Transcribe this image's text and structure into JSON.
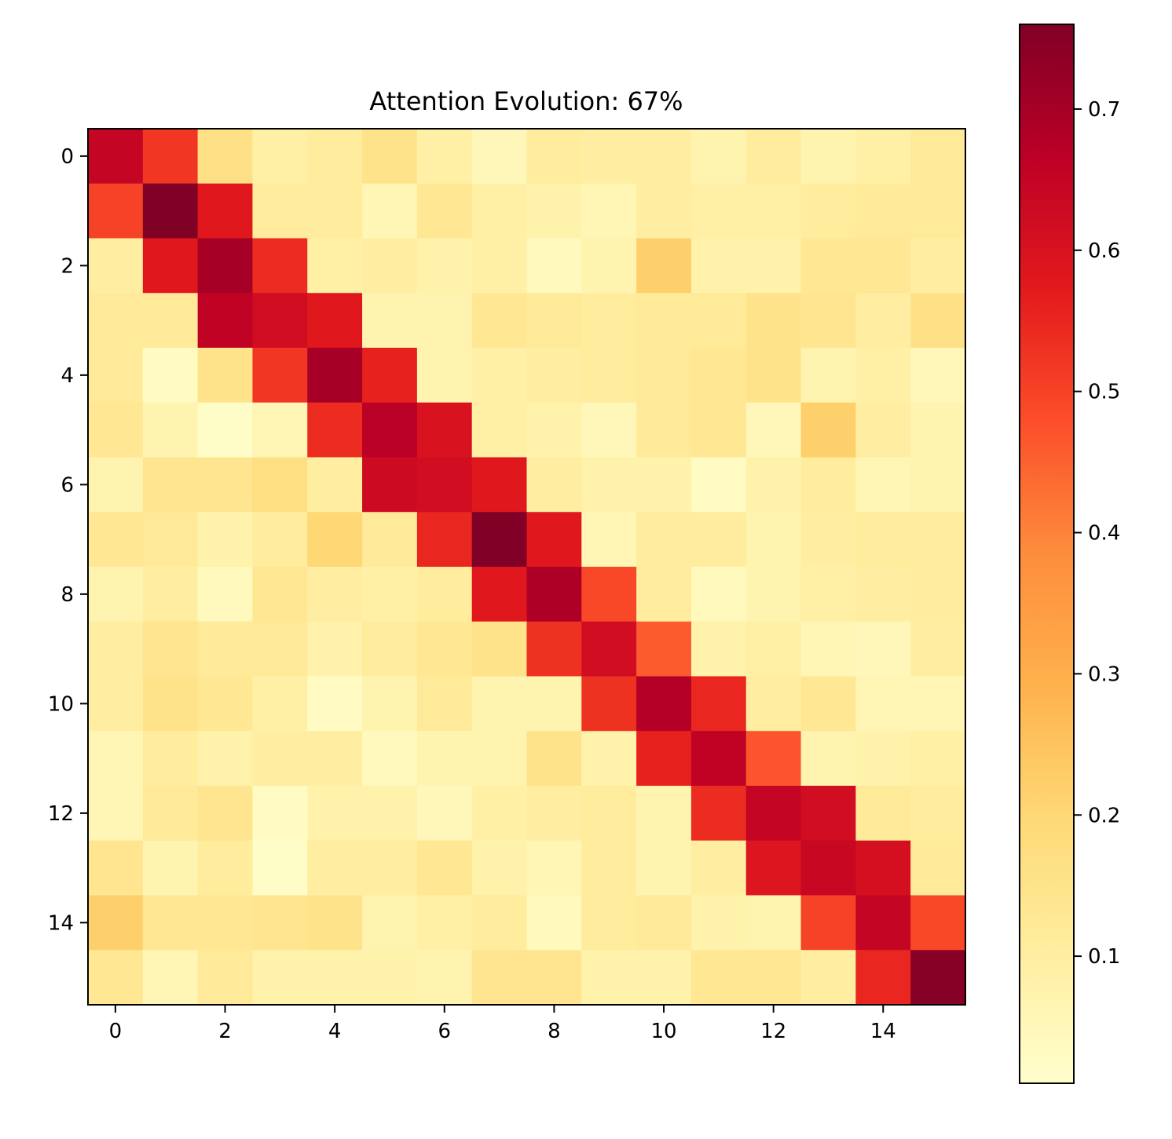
{
  "chart_data": {
    "type": "heatmap",
    "title": "Attention Evolution: 67%",
    "xlabel": "",
    "ylabel": "",
    "rows": 16,
    "cols": 16,
    "x_ticks": [
      0,
      2,
      4,
      6,
      8,
      10,
      12,
      14
    ],
    "y_ticks": [
      0,
      2,
      4,
      6,
      8,
      10,
      12,
      14
    ],
    "colormap": "YlOrRd",
    "colorbar": {
      "min": 0.01,
      "max": 0.76,
      "ticks": [
        0.1,
        0.2,
        0.3,
        0.4,
        0.5,
        0.6,
        0.7
      ],
      "tick_labels": [
        "0.1",
        "0.2",
        "0.3",
        "0.4",
        "0.5",
        "0.6",
        "0.7"
      ]
    },
    "values": [
      [
        0.65,
        0.52,
        0.16,
        0.09,
        0.11,
        0.15,
        0.09,
        0.05,
        0.11,
        0.1,
        0.1,
        0.07,
        0.11,
        0.07,
        0.09,
        0.12
      ],
      [
        0.5,
        0.76,
        0.58,
        0.11,
        0.11,
        0.06,
        0.13,
        0.09,
        0.08,
        0.06,
        0.1,
        0.09,
        0.09,
        0.11,
        0.12,
        0.12
      ],
      [
        0.1,
        0.58,
        0.7,
        0.54,
        0.09,
        0.1,
        0.08,
        0.09,
        0.04,
        0.07,
        0.22,
        0.08,
        0.08,
        0.13,
        0.13,
        0.1
      ],
      [
        0.12,
        0.12,
        0.66,
        0.62,
        0.58,
        0.07,
        0.07,
        0.13,
        0.12,
        0.11,
        0.12,
        0.12,
        0.15,
        0.14,
        0.1,
        0.16
      ],
      [
        0.12,
        0.03,
        0.15,
        0.52,
        0.7,
        0.56,
        0.07,
        0.09,
        0.1,
        0.11,
        0.12,
        0.13,
        0.15,
        0.07,
        0.09,
        0.05
      ],
      [
        0.13,
        0.07,
        0.02,
        0.06,
        0.54,
        0.67,
        0.6,
        0.09,
        0.08,
        0.05,
        0.12,
        0.13,
        0.05,
        0.22,
        0.1,
        0.07
      ],
      [
        0.07,
        0.14,
        0.14,
        0.17,
        0.1,
        0.63,
        0.62,
        0.58,
        0.1,
        0.08,
        0.08,
        0.03,
        0.08,
        0.11,
        0.06,
        0.07
      ],
      [
        0.13,
        0.12,
        0.08,
        0.11,
        0.2,
        0.12,
        0.55,
        0.76,
        0.58,
        0.06,
        0.11,
        0.11,
        0.07,
        0.1,
        0.11,
        0.11
      ],
      [
        0.07,
        0.1,
        0.04,
        0.13,
        0.1,
        0.09,
        0.11,
        0.58,
        0.69,
        0.49,
        0.11,
        0.04,
        0.07,
        0.09,
        0.1,
        0.11
      ],
      [
        0.1,
        0.14,
        0.12,
        0.12,
        0.08,
        0.11,
        0.13,
        0.15,
        0.53,
        0.62,
        0.46,
        0.08,
        0.09,
        0.06,
        0.05,
        0.1
      ],
      [
        0.1,
        0.15,
        0.13,
        0.09,
        0.03,
        0.07,
        0.12,
        0.07,
        0.07,
        0.53,
        0.68,
        0.55,
        0.1,
        0.13,
        0.06,
        0.06
      ],
      [
        0.06,
        0.11,
        0.08,
        0.1,
        0.1,
        0.04,
        0.07,
        0.07,
        0.15,
        0.08,
        0.56,
        0.66,
        0.47,
        0.07,
        0.08,
        0.09
      ],
      [
        0.06,
        0.12,
        0.14,
        0.03,
        0.08,
        0.08,
        0.05,
        0.09,
        0.1,
        0.11,
        0.07,
        0.54,
        0.65,
        0.62,
        0.12,
        0.11
      ],
      [
        0.14,
        0.07,
        0.11,
        0.02,
        0.1,
        0.1,
        0.13,
        0.08,
        0.06,
        0.11,
        0.07,
        0.1,
        0.59,
        0.64,
        0.61,
        0.12
      ],
      [
        0.22,
        0.13,
        0.13,
        0.14,
        0.15,
        0.07,
        0.09,
        0.11,
        0.04,
        0.11,
        0.12,
        0.08,
        0.07,
        0.5,
        0.65,
        0.49
      ],
      [
        0.13,
        0.06,
        0.12,
        0.08,
        0.08,
        0.08,
        0.07,
        0.14,
        0.14,
        0.08,
        0.08,
        0.13,
        0.13,
        0.1,
        0.55,
        0.75
      ]
    ]
  }
}
